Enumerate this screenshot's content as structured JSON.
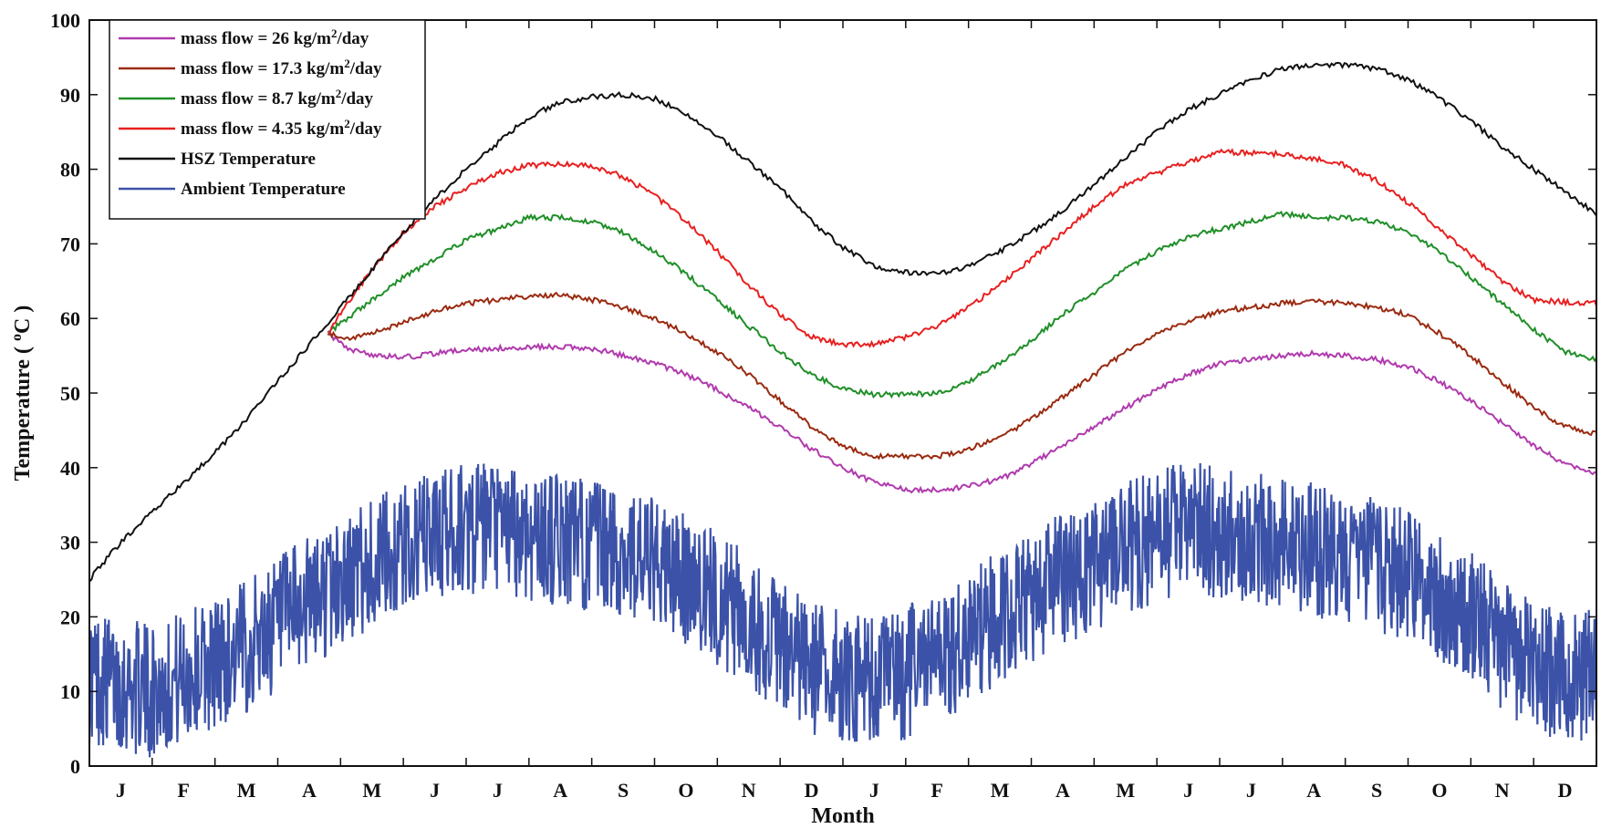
{
  "chart_data": {
    "type": "line",
    "title": "",
    "xlabel": "Month",
    "ylabel": "Temperature ( ",
    "ylabel_sup": "o",
    "ylabel_unit": "C )",
    "ylim": [
      0,
      100
    ],
    "yticks": [
      0,
      10,
      20,
      30,
      40,
      50,
      60,
      70,
      80,
      90,
      100
    ],
    "xlim": [
      0,
      24
    ],
    "x_ticks": [
      "J",
      "F",
      "M",
      "A",
      "M",
      "J",
      "J",
      "A",
      "S",
      "O",
      "N",
      "D",
      "J",
      "F",
      "M",
      "A",
      "M",
      "J",
      "J",
      "A",
      "S",
      "O",
      "N",
      "D"
    ],
    "x_unit": "month index (0 = start of first January)",
    "grid": false,
    "legend_position": "top-left",
    "series": [
      {
        "name": "mass flow = 26 kg/m²/day",
        "legend_prefix": "mass flow = 26 kg/m",
        "legend_sup": "2",
        "legend_suffix": "/day",
        "color": "#b03aae",
        "x": [
          3.8,
          4.1,
          4.5,
          5.0,
          5.5,
          6.0,
          6.5,
          7.0,
          7.5,
          8.0,
          8.5,
          9.0,
          9.5,
          10.0,
          10.5,
          11.0,
          11.5,
          12.0,
          12.5,
          13.0,
          13.5,
          14.0,
          14.5,
          15.0,
          15.5,
          16.0,
          16.5,
          17.0,
          17.5,
          18.0,
          18.5,
          19.0,
          19.5,
          20.0,
          20.5,
          21.0,
          21.5,
          22.0,
          22.5,
          23.0,
          23.5,
          24.0
        ],
        "y": [
          58,
          56,
          55,
          54.8,
          55.3,
          55.8,
          56,
          56.2,
          56.2,
          56,
          55,
          54,
          52.5,
          50.5,
          48,
          45.5,
          42.5,
          40,
          38,
          37,
          37,
          37.5,
          38.5,
          40.5,
          43,
          45.5,
          48,
          50.5,
          52.5,
          54,
          54.5,
          55,
          55.3,
          55,
          54.5,
          53.5,
          51.5,
          49,
          46,
          43,
          40.5,
          39
        ]
      },
      {
        "name": "mass flow = 17.3 kg/m²/day",
        "legend_prefix": "mass flow = 17.3 kg/m",
        "legend_sup": "2",
        "legend_suffix": "/day",
        "color": "#9a2a10",
        "x": [
          3.8,
          4.1,
          4.5,
          5.0,
          5.5,
          6.0,
          6.5,
          7.0,
          7.5,
          8.0,
          8.5,
          9.0,
          9.5,
          10.0,
          10.5,
          11.0,
          11.5,
          12.0,
          12.5,
          13.0,
          13.5,
          14.0,
          14.5,
          15.0,
          15.5,
          16.0,
          16.5,
          17.0,
          17.5,
          18.0,
          18.5,
          19.0,
          19.5,
          20.0,
          20.5,
          21.0,
          21.5,
          22.0,
          22.5,
          23.0,
          23.5,
          24.0
        ],
        "y": [
          58,
          57.2,
          58,
          59.5,
          61,
          62,
          62.5,
          63,
          63.2,
          62.5,
          61.5,
          60,
          58,
          55.5,
          52.5,
          49,
          45.5,
          43,
          41.5,
          41.5,
          41.5,
          42.5,
          44,
          46.5,
          49.5,
          52.5,
          55.5,
          58,
          59.5,
          61,
          61.5,
          62,
          62.3,
          62,
          61.5,
          60.5,
          58,
          55,
          51.5,
          48,
          45.5,
          44.5
        ]
      },
      {
        "name": "mass flow = 8.7 kg/m²/day",
        "legend_prefix": "mass flow = 8.7 kg/m",
        "legend_sup": "2",
        "legend_suffix": "/day",
        "color": "#1f8f28",
        "x": [
          3.8,
          4.1,
          4.5,
          5.0,
          5.5,
          6.0,
          6.5,
          7.0,
          7.5,
          8.0,
          8.5,
          9.0,
          9.5,
          10.0,
          10.5,
          11.0,
          11.5,
          12.0,
          12.5,
          13.0,
          13.5,
          14.0,
          14.5,
          15.0,
          15.5,
          16.0,
          16.5,
          17.0,
          17.5,
          18.0,
          18.5,
          19.0,
          19.5,
          20.0,
          20.5,
          21.0,
          21.5,
          22.0,
          22.5,
          23.0,
          23.5,
          24.0
        ],
        "y": [
          58,
          60,
          62.5,
          65.5,
          68,
          70.5,
          72,
          73.5,
          73.5,
          73,
          71.5,
          69,
          66,
          62.5,
          59,
          55.5,
          52.5,
          50.5,
          49.8,
          49.8,
          50,
          51.5,
          54,
          57,
          60.5,
          63.5,
          66.5,
          69,
          71,
          72,
          73,
          74,
          73.5,
          73.5,
          73,
          71.5,
          69,
          65.5,
          62,
          58.5,
          55.5,
          54.5
        ]
      },
      {
        "name": "mass flow = 4.35 kg/m²/day",
        "legend_prefix": "mass flow = 4.35 kg/m",
        "legend_sup": "2",
        "legend_suffix": "/day",
        "color": "#e82020",
        "x": [
          3.8,
          4.1,
          4.5,
          5.0,
          5.5,
          6.0,
          6.5,
          7.0,
          7.5,
          8.0,
          8.5,
          9.0,
          9.5,
          10.0,
          10.5,
          11.0,
          11.5,
          12.0,
          12.5,
          13.0,
          13.5,
          14.0,
          14.5,
          15.0,
          15.5,
          16.0,
          16.5,
          17.0,
          17.5,
          18.0,
          18.5,
          19.0,
          19.5,
          20.0,
          20.5,
          21.0,
          21.5,
          22.0,
          22.5,
          23.0,
          23.5,
          24.0
        ],
        "y": [
          58,
          62,
          66.5,
          71.5,
          75,
          77.5,
          79.5,
          80.5,
          80.7,
          80.5,
          79,
          76.5,
          73,
          69,
          64.5,
          60.5,
          57.5,
          56.5,
          56.5,
          57.5,
          59,
          61.5,
          64.5,
          68,
          71.5,
          75,
          78,
          79.5,
          81,
          82.3,
          82.2,
          82,
          81.5,
          80.5,
          78.5,
          75.5,
          72,
          68.5,
          65,
          62.5,
          62.2,
          62
        ]
      },
      {
        "name": "HSZ Temperature",
        "legend_prefix": "HSZ Temperature",
        "legend_sup": "",
        "legend_suffix": "",
        "color": "#111111",
        "x": [
          0.0,
          0.5,
          1.0,
          1.5,
          2.0,
          2.5,
          3.0,
          3.5,
          4.0,
          4.5,
          5.0,
          5.5,
          6.0,
          6.5,
          7.0,
          7.5,
          8.0,
          8.5,
          9.0,
          9.5,
          10.0,
          10.5,
          11.0,
          11.5,
          12.0,
          12.5,
          13.0,
          13.5,
          14.0,
          14.5,
          15.0,
          15.5,
          16.0,
          16.5,
          17.0,
          17.5,
          18.0,
          18.5,
          19.0,
          19.5,
          20.0,
          20.5,
          21.0,
          21.5,
          22.0,
          22.5,
          23.0,
          23.5,
          24.0
        ],
        "y": [
          25,
          30,
          34,
          38,
          42,
          46.5,
          51.5,
          56.5,
          61.5,
          66.5,
          71.5,
          76,
          80,
          83.5,
          87,
          89,
          89.7,
          90,
          89.5,
          87.5,
          84.5,
          81,
          77.5,
          73,
          69.5,
          67,
          66.2,
          66,
          67,
          69,
          71.5,
          74.5,
          78,
          81.5,
          85,
          88,
          90,
          92,
          93.5,
          94,
          94,
          93.5,
          92,
          89.5,
          86.5,
          83,
          80,
          77,
          74
        ]
      },
      {
        "name": "Ambient Temperature",
        "legend_prefix": "Ambient Temperature",
        "legend_sup": "",
        "legend_suffix": "",
        "color": "#3b52a8",
        "mean": {
          "x": [
            0.0,
            0.5,
            1.0,
            1.5,
            2.0,
            2.5,
            3.0,
            3.5,
            4.0,
            4.5,
            5.0,
            5.5,
            6.0,
            6.5,
            7.0,
            7.5,
            8.0,
            8.5,
            9.0,
            9.5,
            10.0,
            10.5,
            11.0,
            11.5,
            12.0,
            12.5,
            13.0,
            13.5,
            14.0,
            14.5,
            15.0,
            15.5,
            16.0,
            16.5,
            17.0,
            17.5,
            18.0,
            18.5,
            19.0,
            19.5,
            20.0,
            20.5,
            21.0,
            21.5,
            22.0,
            22.5,
            23.0,
            23.5,
            24.0
          ],
          "y": [
            12,
            11,
            10,
            12,
            14,
            16,
            19,
            22,
            24.5,
            27,
            29,
            31,
            32,
            31.5,
            31,
            30.5,
            29.5,
            28.5,
            27,
            25,
            22.5,
            19.5,
            16,
            13,
            12,
            11.5,
            12.5,
            14.5,
            17,
            20,
            22.5,
            25,
            27,
            29,
            31,
            32,
            31.5,
            31,
            30,
            29,
            28,
            27,
            25.5,
            23,
            20,
            16.5,
            13,
            12,
            12
          ]
        },
        "amplitude": 9,
        "y_range": [
          0,
          42
        ]
      }
    ]
  }
}
